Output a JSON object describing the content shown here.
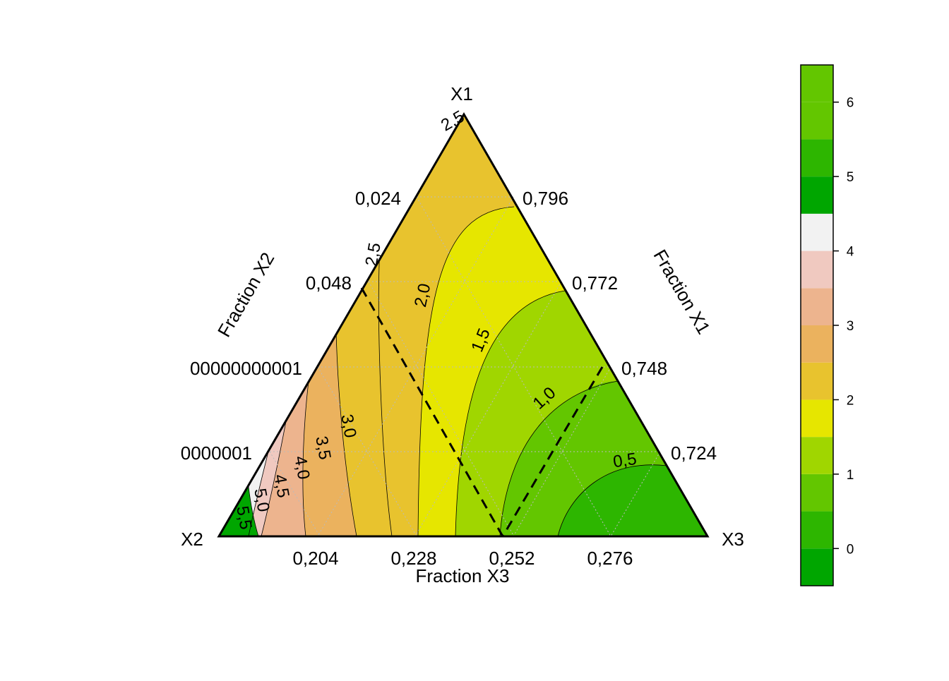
{
  "chart_data": {
    "type": "ternary-contour",
    "vertices": {
      "top": "X1",
      "left": "X2",
      "right": "X3"
    },
    "axis_titles": {
      "x1": "Fraction X1",
      "x2": "Fraction X2",
      "x3": "Fraction X3"
    },
    "x1_ticks": [
      "0,796",
      "0,772",
      "0,748",
      "0,724"
    ],
    "x2_ticks": [
      "0,024",
      "0,048",
      "00000000001",
      "0000001"
    ],
    "x3_ticks": [
      "0,204",
      "0,228",
      "0,252",
      "0,276"
    ],
    "vertex_label": "2,5",
    "contours": [
      {
        "level": 0.5,
        "label": "0,5"
      },
      {
        "level": 1.0,
        "label": "1,0"
      },
      {
        "level": 1.5,
        "label": "1,5"
      },
      {
        "level": 2.0,
        "label": "2,0"
      },
      {
        "level": 2.5,
        "label": "2,5"
      },
      {
        "level": 3.0,
        "label": "3,0"
      },
      {
        "level": 3.5,
        "label": "3,5"
      },
      {
        "level": 4.0,
        "label": "4,0"
      },
      {
        "level": 4.5,
        "label": "4,5"
      },
      {
        "level": 5.0,
        "label": "5,0"
      },
      {
        "level": 5.5,
        "label": "5,5"
      }
    ],
    "colorbar": {
      "range": [
        -0.5,
        6.5
      ],
      "ticks": [
        "0",
        "1",
        "2",
        "3",
        "4",
        "5",
        "6"
      ],
      "bands": [
        {
          "from": -0.5,
          "to": 0.0,
          "color": "#00A600"
        },
        {
          "from": 0.0,
          "to": 0.5,
          "color": "#2DB600"
        },
        {
          "from": 0.5,
          "to": 1.0,
          "color": "#63C600"
        },
        {
          "from": 1.0,
          "to": 1.5,
          "color": "#A0D600"
        },
        {
          "from": 1.5,
          "to": 2.0,
          "color": "#E6E600"
        },
        {
          "from": 2.0,
          "to": 2.5,
          "color": "#E8C32E"
        },
        {
          "from": 2.5,
          "to": 3.0,
          "color": "#EBB25E"
        },
        {
          "from": 3.0,
          "to": 3.5,
          "color": "#EDB48E"
        },
        {
          "from": 3.5,
          "to": 4.0,
          "color": "#F0C9C0"
        },
        {
          "from": 4.0,
          "to": 4.5,
          "color": "#F2F2F2"
        },
        {
          "from": 4.5,
          "to": 5.0,
          "color": "#00A600"
        },
        {
          "from": 5.0,
          "to": 5.5,
          "color": "#2DB600"
        },
        {
          "from": 5.5,
          "to": 6.0,
          "color": "#63C600"
        }
      ]
    }
  }
}
